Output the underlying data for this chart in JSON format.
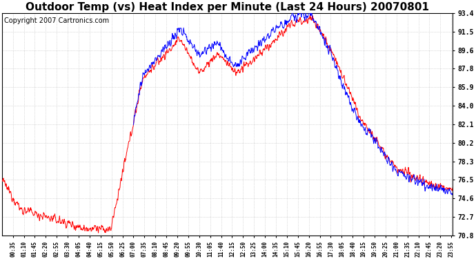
{
  "title": "Outdoor Temp (vs) Heat Index per Minute (Last 24 Hours) 20070801",
  "copyright": "Copyright 2007 Cartronics.com",
  "ylabel_right_ticks": [
    70.8,
    72.7,
    74.6,
    76.5,
    78.3,
    80.2,
    82.1,
    84.0,
    85.9,
    87.8,
    89.6,
    91.5,
    93.4
  ],
  "ymin": 70.8,
  "ymax": 93.4,
  "line_color_temp": "#ff0000",
  "line_color_heat": "#0000ff",
  "background_color": "#ffffff",
  "grid_color": "#bbbbbb",
  "title_fontsize": 11,
  "copyright_fontsize": 7,
  "x_labels": [
    "00:35",
    "01:10",
    "01:45",
    "02:20",
    "02:55",
    "03:30",
    "04:05",
    "04:40",
    "05:15",
    "05:50",
    "06:25",
    "07:00",
    "07:35",
    "08:10",
    "08:45",
    "09:20",
    "09:55",
    "10:30",
    "11:05",
    "11:40",
    "12:15",
    "12:50",
    "13:25",
    "14:00",
    "14:35",
    "15:10",
    "15:45",
    "16:20",
    "16:55",
    "17:30",
    "18:05",
    "18:40",
    "19:15",
    "19:50",
    "20:25",
    "21:00",
    "21:35",
    "22:10",
    "22:45",
    "23:20",
    "23:55"
  ]
}
